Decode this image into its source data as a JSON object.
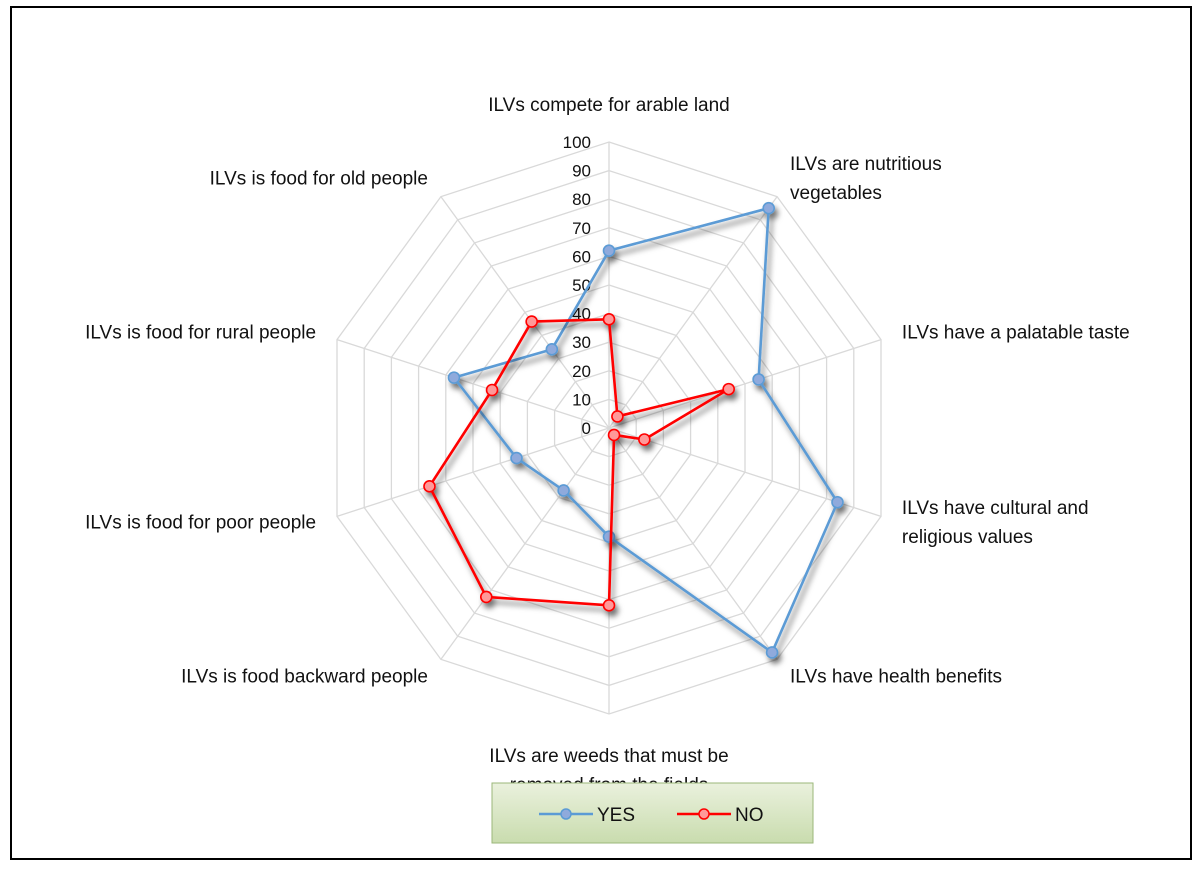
{
  "chart_data": {
    "type": "radar",
    "categories": [
      "ILVs compete for arable land",
      "ILVs are nutritious vegetables",
      "ILVs have a palatable taste",
      "ILVs have cultural and religious values",
      "ILVs have health benefits",
      "ILVs are weeds that must be removed from the fields",
      "ILVs is food backward people",
      "ILVs is food for poor people",
      "ILVs is food for rural people",
      "ILVs is food for old people"
    ],
    "category_lines": [
      [
        "ILVs compete for arable land"
      ],
      [
        "ILVs are nutritious",
        "vegetables"
      ],
      [
        "ILVs have a palatable taste"
      ],
      [
        "ILVs have cultural and",
        "religious values"
      ],
      [
        "ILVs have health benefits"
      ],
      [
        "ILVs are weeds that must be",
        "removed from the fields"
      ],
      [
        "ILVs is food backward people"
      ],
      [
        "ILVs is food for poor people"
      ],
      [
        "ILVs is food for rural people"
      ],
      [
        "ILVs is food for old people"
      ]
    ],
    "ticks": [
      0,
      10,
      20,
      30,
      40,
      50,
      60,
      70,
      80,
      90,
      100
    ],
    "ticks_text": [
      "0",
      "10",
      "20",
      "30",
      "40",
      "50",
      "60",
      "70",
      "80",
      "90",
      "100"
    ],
    "range": [
      0,
      100
    ],
    "series": [
      {
        "name": "YES",
        "values": [
          62,
          95,
          55,
          84,
          97,
          38,
          27,
          34,
          57,
          34
        ],
        "color": "#5b9bd5",
        "marker_fill": "#8faadc"
      },
      {
        "name": "NO",
        "values": [
          38,
          5,
          44,
          13,
          3,
          62,
          73,
          66,
          43,
          46
        ],
        "color": "#ff0000",
        "marker_fill": "#ff9999"
      }
    ],
    "legend_position": "bottom"
  }
}
